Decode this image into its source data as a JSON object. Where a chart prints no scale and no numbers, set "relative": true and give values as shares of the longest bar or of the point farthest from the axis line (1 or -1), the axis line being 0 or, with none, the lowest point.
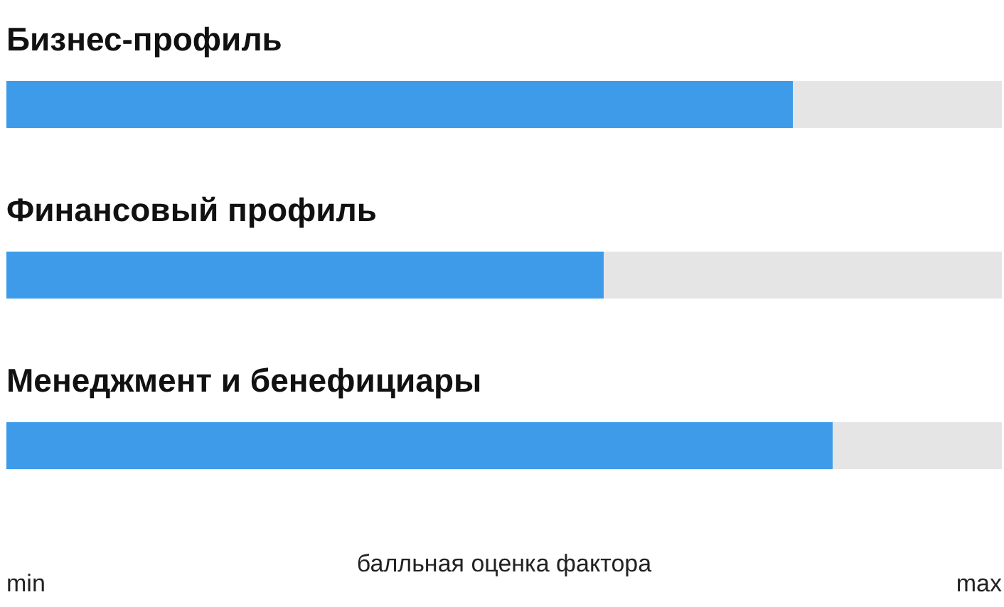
{
  "chart_data": {
    "type": "bar",
    "orientation": "horizontal",
    "stacked": true,
    "relative": true,
    "categories": [
      "Бизнес-профиль",
      "Финансовый профиль",
      "Менеджмент и бенефициары"
    ],
    "series": [
      {
        "color": "#3d9be9",
        "values": [
          0.79,
          0.6,
          0.83
        ]
      },
      {
        "color": "#e5e5e5",
        "values": [
          0.21,
          0.4,
          0.17
        ]
      }
    ],
    "xlabel": "балльная оценка фактора",
    "annotations": [
      "min",
      "max"
    ]
  }
}
